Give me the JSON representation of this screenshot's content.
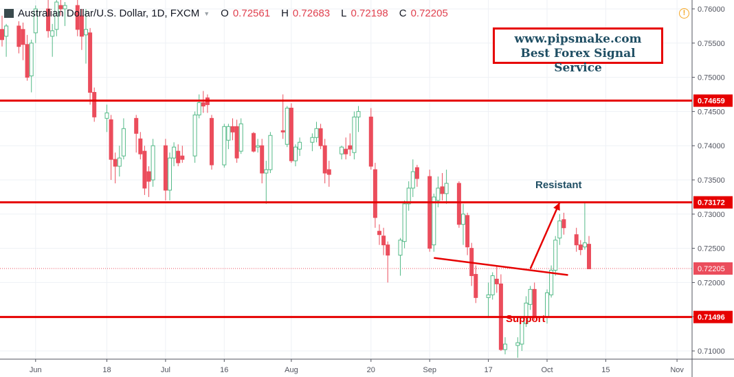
{
  "header": {
    "symbol": "Australian Dollar/U.S. Dollar, 1D, FXCM",
    "open_label": "O",
    "open": "0.72561",
    "high_label": "H",
    "high": "0.72683",
    "low_label": "L",
    "low": "0.72198",
    "close_label": "C",
    "close": "0.72205"
  },
  "watermark": {
    "line1": "www.pipsmake.com",
    "line2": "Best Forex Signal Service"
  },
  "annotations": {
    "resistant": "Resistant",
    "support": "Support"
  },
  "colors": {
    "bull": "#53b987",
    "bear": "#eb4d5c",
    "level": "#e60000",
    "grid": "#eef1f5"
  },
  "chart_data": {
    "type": "candlestick",
    "x_start": "2018-05-24",
    "ylim": [
      0.7088,
      0.7613
    ],
    "y_ticks": [
      "0.76000",
      "0.75500",
      "0.75000",
      "0.74500",
      "0.74000",
      "0.73500",
      "0.73000",
      "0.72500",
      "0.72000",
      "0.71500",
      "0.71000"
    ],
    "x_ticks": [
      {
        "date": "2018-06-01",
        "label": "Jun"
      },
      {
        "date": "2018-06-18",
        "label": "18"
      },
      {
        "date": "2018-07-02",
        "label": "Jul"
      },
      {
        "date": "2018-07-16",
        "label": "16"
      },
      {
        "date": "2018-08-01",
        "label": "Aug"
      },
      {
        "date": "2018-08-20",
        "label": "20"
      },
      {
        "date": "2018-09-03",
        "label": "Sep"
      },
      {
        "date": "2018-09-17",
        "label": "17"
      },
      {
        "date": "2018-10-01",
        "label": "Oct"
      },
      {
        "date": "2018-10-15",
        "label": "15"
      },
      {
        "date": "2018-11-01",
        "label": "Nov"
      }
    ],
    "horizontal_levels": [
      {
        "value": 0.74659,
        "label": "0.74659"
      },
      {
        "value": 0.73172,
        "label": "0.73172"
      },
      {
        "value": 0.71496,
        "label": "0.71496"
      }
    ],
    "last_price": {
      "value": 0.72205,
      "label": "0.72205"
    },
    "trend_line": {
      "from": [
        "2018-09-04",
        0.7236
      ],
      "to": [
        "2018-10-06",
        0.7211
      ]
    },
    "arrow": {
      "from": [
        "2018-09-27",
        0.722
      ],
      "to": [
        "2018-10-04",
        0.7317
      ]
    },
    "candles": [
      {
        "date": "2018-05-24",
        "o": 0.757,
        "h": 0.759,
        "l": 0.7545,
        "c": 0.7555
      },
      {
        "date": "2018-05-25",
        "o": 0.756,
        "h": 0.7578,
        "l": 0.753,
        "c": 0.7575
      },
      {
        "date": "2018-05-28",
        "o": 0.7575,
        "h": 0.7582,
        "l": 0.7535,
        "c": 0.7545
      },
      {
        "date": "2018-05-29",
        "o": 0.757,
        "h": 0.758,
        "l": 0.7525,
        "c": 0.7548
      },
      {
        "date": "2018-05-30",
        "o": 0.7548,
        "h": 0.7562,
        "l": 0.7495,
        "c": 0.75
      },
      {
        "date": "2018-05-31",
        "o": 0.7502,
        "h": 0.7555,
        "l": 0.7478,
        "c": 0.755
      },
      {
        "date": "2018-06-01",
        "o": 0.7565,
        "h": 0.7605,
        "l": 0.755,
        "c": 0.76
      },
      {
        "date": "2018-06-04",
        "o": 0.76,
        "h": 0.7622,
        "l": 0.7558,
        "c": 0.7568
      },
      {
        "date": "2018-06-05",
        "o": 0.756,
        "h": 0.7578,
        "l": 0.753,
        "c": 0.7568
      },
      {
        "date": "2018-06-06",
        "o": 0.757,
        "h": 0.7625,
        "l": 0.756,
        "c": 0.761
      },
      {
        "date": "2018-06-07",
        "o": 0.7605,
        "h": 0.764,
        "l": 0.759,
        "c": 0.76
      },
      {
        "date": "2018-06-08",
        "o": 0.76,
        "h": 0.761,
        "l": 0.7575,
        "c": 0.7605
      },
      {
        "date": "2018-06-11",
        "o": 0.7605,
        "h": 0.7615,
        "l": 0.756,
        "c": 0.757
      },
      {
        "date": "2018-06-12",
        "o": 0.759,
        "h": 0.76,
        "l": 0.754,
        "c": 0.756
      },
      {
        "date": "2018-06-13",
        "o": 0.7562,
        "h": 0.76,
        "l": 0.752,
        "c": 0.757
      },
      {
        "date": "2018-06-14",
        "o": 0.7565,
        "h": 0.7572,
        "l": 0.746,
        "c": 0.7478
      },
      {
        "date": "2018-06-15",
        "o": 0.7478,
        "h": 0.7485,
        "l": 0.7435,
        "c": 0.7442
      },
      {
        "date": "2018-06-18",
        "o": 0.744,
        "h": 0.746,
        "l": 0.742,
        "c": 0.7448
      },
      {
        "date": "2018-06-19",
        "o": 0.7438,
        "h": 0.7445,
        "l": 0.735,
        "c": 0.738
      },
      {
        "date": "2018-06-20",
        "o": 0.738,
        "h": 0.739,
        "l": 0.7345,
        "c": 0.737
      },
      {
        "date": "2018-06-21",
        "o": 0.737,
        "h": 0.74,
        "l": 0.7355,
        "c": 0.7382
      },
      {
        "date": "2018-06-22",
        "o": 0.7385,
        "h": 0.744,
        "l": 0.738,
        "c": 0.7425
      },
      {
        "date": "2018-06-25",
        "o": 0.744,
        "h": 0.7445,
        "l": 0.739,
        "c": 0.7418
      },
      {
        "date": "2018-06-26",
        "o": 0.741,
        "h": 0.742,
        "l": 0.738,
        "c": 0.7388
      },
      {
        "date": "2018-06-27",
        "o": 0.7392,
        "h": 0.74,
        "l": 0.7328,
        "c": 0.7338
      },
      {
        "date": "2018-06-28",
        "o": 0.7362,
        "h": 0.737,
        "l": 0.7325,
        "c": 0.7348
      },
      {
        "date": "2018-06-29",
        "o": 0.735,
        "h": 0.741,
        "l": 0.734,
        "c": 0.74
      },
      {
        "date": "2018-07-02",
        "o": 0.74,
        "h": 0.741,
        "l": 0.732,
        "c": 0.7335
      },
      {
        "date": "2018-07-03",
        "o": 0.7335,
        "h": 0.739,
        "l": 0.732,
        "c": 0.7382
      },
      {
        "date": "2018-07-04",
        "o": 0.7382,
        "h": 0.7405,
        "l": 0.737,
        "c": 0.7398
      },
      {
        "date": "2018-07-05",
        "o": 0.7392,
        "h": 0.7402,
        "l": 0.737,
        "c": 0.7375
      },
      {
        "date": "2018-07-06",
        "o": 0.7385,
        "h": 0.74,
        "l": 0.7375,
        "c": 0.738
      },
      {
        "date": "2018-07-09",
        "o": 0.7385,
        "h": 0.745,
        "l": 0.7375,
        "c": 0.7445
      },
      {
        "date": "2018-07-10",
        "o": 0.7445,
        "h": 0.7475,
        "l": 0.744,
        "c": 0.7463
      },
      {
        "date": "2018-07-11",
        "o": 0.7463,
        "h": 0.748,
        "l": 0.7448,
        "c": 0.7458
      },
      {
        "date": "2018-07-12",
        "o": 0.747,
        "h": 0.7475,
        "l": 0.7448,
        "c": 0.746
      },
      {
        "date": "2018-07-13",
        "o": 0.744,
        "h": 0.7445,
        "l": 0.7365,
        "c": 0.7372
      },
      {
        "date": "2018-07-16",
        "o": 0.7372,
        "h": 0.7432,
        "l": 0.7368,
        "c": 0.7428
      },
      {
        "date": "2018-07-17",
        "o": 0.7408,
        "h": 0.7432,
        "l": 0.7395,
        "c": 0.7428
      },
      {
        "date": "2018-07-18",
        "o": 0.7428,
        "h": 0.744,
        "l": 0.7408,
        "c": 0.742
      },
      {
        "date": "2018-07-19",
        "o": 0.7428,
        "h": 0.7438,
        "l": 0.7375,
        "c": 0.7382
      },
      {
        "date": "2018-07-20",
        "o": 0.7392,
        "h": 0.744,
        "l": 0.7388,
        "c": 0.7432
      },
      {
        "date": "2018-07-23",
        "o": 0.7418,
        "h": 0.742,
        "l": 0.739,
        "c": 0.7392
      },
      {
        "date": "2018-07-24",
        "o": 0.7398,
        "h": 0.741,
        "l": 0.739,
        "c": 0.74
      },
      {
        "date": "2018-07-25",
        "o": 0.74,
        "h": 0.741,
        "l": 0.7345,
        "c": 0.736
      },
      {
        "date": "2018-07-26",
        "o": 0.736,
        "h": 0.7378,
        "l": 0.7315,
        "c": 0.7365
      },
      {
        "date": "2018-07-27",
        "o": 0.7365,
        "h": 0.742,
        "l": 0.736,
        "c": 0.7415
      },
      {
        "date": "2018-07-30",
        "o": 0.7422,
        "h": 0.7475,
        "l": 0.741,
        "c": 0.742
      },
      {
        "date": "2018-07-31",
        "o": 0.7402,
        "h": 0.7458,
        "l": 0.7398,
        "c": 0.7455
      },
      {
        "date": "2018-08-01",
        "o": 0.7455,
        "h": 0.7462,
        "l": 0.7375,
        "c": 0.7378
      },
      {
        "date": "2018-08-02",
        "o": 0.7378,
        "h": 0.7402,
        "l": 0.737,
        "c": 0.7398
      },
      {
        "date": "2018-08-03",
        "o": 0.7395,
        "h": 0.7412,
        "l": 0.7385,
        "c": 0.7405
      },
      {
        "date": "2018-08-06",
        "o": 0.7405,
        "h": 0.7418,
        "l": 0.7392,
        "c": 0.7412
      },
      {
        "date": "2018-08-07",
        "o": 0.7412,
        "h": 0.7435,
        "l": 0.7405,
        "c": 0.7425
      },
      {
        "date": "2018-08-08",
        "o": 0.7425,
        "h": 0.7432,
        "l": 0.7395,
        "c": 0.74
      },
      {
        "date": "2018-08-09",
        "o": 0.74,
        "h": 0.741,
        "l": 0.7345,
        "c": 0.736
      },
      {
        "date": "2018-08-10",
        "o": 0.7365,
        "h": 0.7378,
        "l": 0.734,
        "c": 0.7358
      },
      {
        "date": "2018-08-13",
        "o": 0.7388,
        "h": 0.74,
        "l": 0.738,
        "c": 0.7398
      },
      {
        "date": "2018-08-14",
        "o": 0.7395,
        "h": 0.7412,
        "l": 0.738,
        "c": 0.7388
      },
      {
        "date": "2018-08-15",
        "o": 0.74,
        "h": 0.7418,
        "l": 0.7385,
        "c": 0.7395
      },
      {
        "date": "2018-08-16",
        "o": 0.739,
        "h": 0.745,
        "l": 0.738,
        "c": 0.7442
      },
      {
        "date": "2018-08-17",
        "o": 0.7442,
        "h": 0.7458,
        "l": 0.742,
        "c": 0.745
      },
      {
        "date": "2018-08-20",
        "o": 0.7442,
        "h": 0.7455,
        "l": 0.7365,
        "c": 0.737
      },
      {
        "date": "2018-08-21",
        "o": 0.7365,
        "h": 0.7375,
        "l": 0.728,
        "c": 0.7295
      },
      {
        "date": "2018-08-22",
        "o": 0.7275,
        "h": 0.7285,
        "l": 0.7255,
        "c": 0.727
      },
      {
        "date": "2018-08-23",
        "o": 0.7268,
        "h": 0.728,
        "l": 0.724,
        "c": 0.7255
      },
      {
        "date": "2018-08-24",
        "o": 0.7255,
        "h": 0.726,
        "l": 0.72,
        "c": 0.724
      },
      {
        "date": "2018-08-27",
        "o": 0.724,
        "h": 0.7265,
        "l": 0.721,
        "c": 0.7262
      },
      {
        "date": "2018-08-28",
        "o": 0.726,
        "h": 0.732,
        "l": 0.725,
        "c": 0.7315
      },
      {
        "date": "2018-08-29",
        "o": 0.7315,
        "h": 0.7348,
        "l": 0.7305,
        "c": 0.7338
      },
      {
        "date": "2018-08-30",
        "o": 0.7338,
        "h": 0.738,
        "l": 0.7325,
        "c": 0.7362
      },
      {
        "date": "2018-08-31",
        "o": 0.7368,
        "h": 0.7372,
        "l": 0.734,
        "c": 0.7352
      },
      {
        "date": "2018-09-03",
        "o": 0.7355,
        "h": 0.7365,
        "l": 0.7245,
        "c": 0.725
      },
      {
        "date": "2018-09-04",
        "o": 0.7255,
        "h": 0.733,
        "l": 0.7245,
        "c": 0.7325
      },
      {
        "date": "2018-09-05",
        "o": 0.732,
        "h": 0.7355,
        "l": 0.731,
        "c": 0.7338
      },
      {
        "date": "2018-09-06",
        "o": 0.734,
        "h": 0.736,
        "l": 0.732,
        "c": 0.733
      },
      {
        "date": "2018-09-07",
        "o": 0.733,
        "h": 0.7365,
        "l": 0.7315,
        "c": 0.7345
      },
      {
        "date": "2018-09-10",
        "o": 0.7345,
        "h": 0.7348,
        "l": 0.728,
        "c": 0.7285
      },
      {
        "date": "2018-09-11",
        "o": 0.7285,
        "h": 0.7315,
        "l": 0.7255,
        "c": 0.73
      },
      {
        "date": "2018-09-12",
        "o": 0.7298,
        "h": 0.7302,
        "l": 0.724,
        "c": 0.7252
      },
      {
        "date": "2018-09-13",
        "o": 0.725,
        "h": 0.7258,
        "l": 0.7195,
        "c": 0.721
      },
      {
        "date": "2018-09-14",
        "o": 0.7212,
        "h": 0.7225,
        "l": 0.717,
        "c": 0.7178
      },
      {
        "date": "2018-09-17",
        "o": 0.7178,
        "h": 0.72,
        "l": 0.715,
        "c": 0.7182
      },
      {
        "date": "2018-09-18",
        "o": 0.7182,
        "h": 0.7215,
        "l": 0.7175,
        "c": 0.721
      },
      {
        "date": "2018-09-19",
        "o": 0.7205,
        "h": 0.7225,
        "l": 0.7185,
        "c": 0.7198
      },
      {
        "date": "2018-09-20",
        "o": 0.7198,
        "h": 0.7212,
        "l": 0.71,
        "c": 0.7102
      },
      {
        "date": "2018-09-21",
        "o": 0.7102,
        "h": 0.712,
        "l": 0.7095,
        "c": 0.711
      },
      {
        "date": "2018-09-24",
        "o": 0.7108,
        "h": 0.712,
        "l": 0.709,
        "c": 0.7112
      },
      {
        "date": "2018-09-25",
        "o": 0.711,
        "h": 0.715,
        "l": 0.71,
        "c": 0.7148
      },
      {
        "date": "2018-09-26",
        "o": 0.714,
        "h": 0.718,
        "l": 0.7135,
        "c": 0.717
      },
      {
        "date": "2018-09-27",
        "o": 0.7168,
        "h": 0.7195,
        "l": 0.716,
        "c": 0.719
      },
      {
        "date": "2018-09-28",
        "o": 0.719,
        "h": 0.72,
        "l": 0.7145,
        "c": 0.715
      },
      {
        "date": "2018-10-01",
        "o": 0.715,
        "h": 0.719,
        "l": 0.714,
        "c": 0.7185
      },
      {
        "date": "2018-10-02",
        "o": 0.7182,
        "h": 0.7225,
        "l": 0.7178,
        "c": 0.7218
      },
      {
        "date": "2018-10-03",
        "o": 0.7218,
        "h": 0.7268,
        "l": 0.721,
        "c": 0.7262
      },
      {
        "date": "2018-10-04",
        "o": 0.7265,
        "h": 0.73,
        "l": 0.7255,
        "c": 0.729
      },
      {
        "date": "2018-10-05",
        "o": 0.7292,
        "h": 0.7302,
        "l": 0.727,
        "c": 0.728
      },
      {
        "date": "2018-10-08",
        "o": 0.727,
        "h": 0.728,
        "l": 0.7245,
        "c": 0.7255
      },
      {
        "date": "2018-10-09",
        "o": 0.7255,
        "h": 0.7262,
        "l": 0.724,
        "c": 0.7248
      },
      {
        "date": "2018-10-10",
        "o": 0.7252,
        "h": 0.7318,
        "l": 0.7248,
        "c": 0.7258
      },
      {
        "date": "2018-10-11",
        "o": 0.7256,
        "h": 0.7268,
        "l": 0.722,
        "c": 0.722
      }
    ]
  }
}
